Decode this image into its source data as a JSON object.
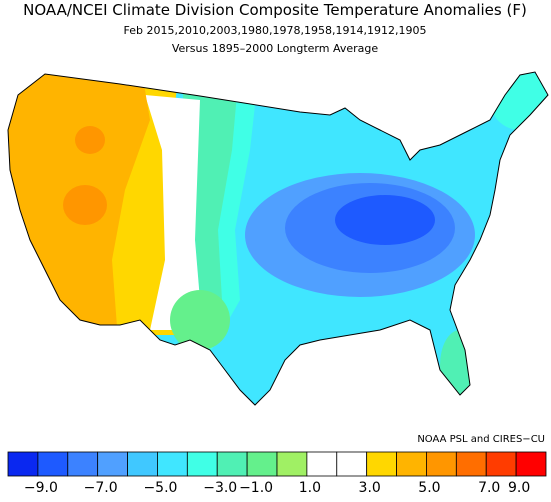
{
  "title": "NOAA/NCEI Climate Division Composite Temperature Anomalies (F)",
  "subtitle": "Feb  2015,2010,2003,1980,1978,1958,1914,1912,1905",
  "baseline": "Versus 1895–2000 Longterm Average",
  "credit": "NOAA PSL and CIRES−CU",
  "legend": {
    "colors": [
      "#0a28f0",
      "#1e5aff",
      "#3c82ff",
      "#50a0ff",
      "#40c8ff",
      "#40e6ff",
      "#40ffe6",
      "#50f0b4",
      "#64f08c",
      "#a0f064",
      "#ffffff",
      "#ffffff",
      "#ffd700",
      "#ffb400",
      "#ff9600",
      "#ff6e00",
      "#ff3c00",
      "#ff0000",
      "#d20000",
      "#a00000",
      "#780000"
    ],
    "labels": [
      "−9.0",
      "−7.0",
      "−5.0",
      "−3.0",
      "−1.0",
      "1.0",
      "3.0",
      "5.0",
      "7.0",
      "9.0"
    ]
  }
}
